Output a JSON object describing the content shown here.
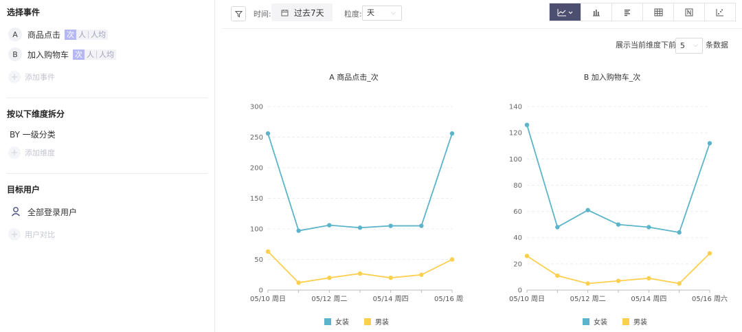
{
  "sidebar": {
    "events_title": "选择事件",
    "events": [
      {
        "letter": "A",
        "name": "商品点击",
        "tags": [
          "次",
          "人",
          "人均"
        ]
      },
      {
        "letter": "B",
        "name": "加入购物车",
        "tags": [
          "次",
          "人",
          "人均"
        ]
      }
    ],
    "add_event": "添加事件",
    "split_title": "按以下维度拆分",
    "by_dimension": "BY 一级分类",
    "add_dimension": "添加维度",
    "target_title": "目标用户",
    "target_user": "全部登录用户",
    "user_compare": "用户对比"
  },
  "toolbar": {
    "time_label": "时间:",
    "date_range": "过去7天",
    "granularity_label": "粒度:",
    "granularity_value": "天",
    "view_icons": [
      "line-chart-icon",
      "bar-chart-icon",
      "horizontal-bar-icon",
      "table-icon",
      "number-icon",
      "scatter-icon"
    ],
    "active_view": "line-chart-icon"
  },
  "topn": {
    "prefix": "展示当前维度下前",
    "value": "5",
    "suffix": "条数据"
  },
  "colors": {
    "series1": "#5bb4c9",
    "series2": "#fdcf4e"
  },
  "chart_data": [
    {
      "type": "line",
      "title": "A 商品点击_次",
      "x": [
        "05/10 周日",
        "05/11 周一",
        "05/12 周二",
        "05/13 周三",
        "05/14 周四",
        "05/15 周五",
        "05/16 周六"
      ],
      "x_tick_labels_shown": [
        "05/10 周日",
        "05/12 周二",
        "05/14 周四",
        "05/16 周六"
      ],
      "ylim": [
        0,
        300
      ],
      "yticks": [
        0,
        50,
        100,
        150,
        200,
        250,
        300
      ],
      "grid": true,
      "legend": "bottom",
      "series": [
        {
          "name": "女装",
          "values": [
            256,
            97,
            106,
            102,
            105,
            105,
            256
          ]
        },
        {
          "name": "男装",
          "values": [
            63,
            12,
            20,
            27,
            20,
            25,
            50
          ]
        }
      ]
    },
    {
      "type": "line",
      "title": "B 加入购物车_次",
      "x": [
        "05/10 周日",
        "05/11 周一",
        "05/12 周二",
        "05/13 周三",
        "05/14 周四",
        "05/15 周五",
        "05/16 周六"
      ],
      "x_tick_labels_shown": [
        "05/10 周日",
        "05/12 周二",
        "05/14 周四",
        "05/16 周六"
      ],
      "ylim": [
        0,
        140
      ],
      "yticks": [
        0,
        20,
        40,
        60,
        80,
        100,
        120,
        140
      ],
      "grid": true,
      "legend": "bottom",
      "series": [
        {
          "name": "女装",
          "values": [
            126,
            48,
            61,
            50,
            48,
            44,
            112
          ]
        },
        {
          "name": "男装",
          "values": [
            26,
            11,
            5,
            7,
            9,
            5,
            28
          ]
        }
      ]
    }
  ]
}
